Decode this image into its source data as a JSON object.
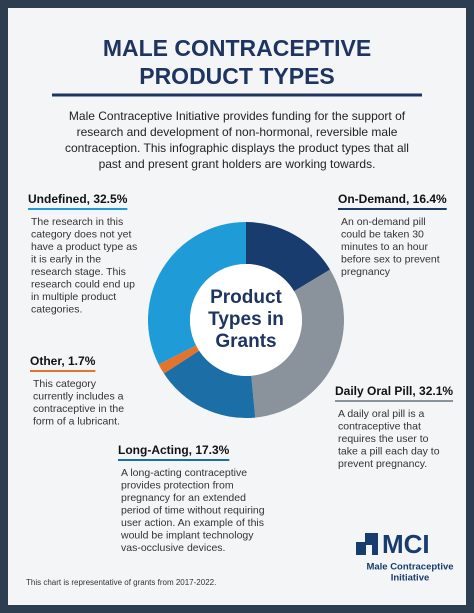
{
  "title": [
    "MALE CONTRACEPTIVE",
    "PRODUCT TYPES"
  ],
  "intro": [
    "Male Contraceptive Initiative provides funding for the support of",
    "research and development of non-hormonal, reversible male",
    "contraception. This infographic displays the product types that all",
    "past and present grant holders are working towards."
  ],
  "chart_data": {
    "type": "pie",
    "donut": true,
    "center_label": [
      "Product",
      "Types in",
      "Grants"
    ],
    "values": [
      16.4,
      32.1,
      17.3,
      1.7,
      32.5
    ],
    "value_labels": [
      "On-Demand, 16.4%",
      "Daily Oral Pill, 32.1%",
      "Long-Acting, 17.3%",
      "Other, 1.7%",
      "Undefined, 32.5%"
    ],
    "colors": [
      "#183c6e",
      "#8a939c",
      "#1c6fa6",
      "#e4742c",
      "#1f9bd7"
    ],
    "descriptions": [
      [
        "An on-demand pill",
        "could be taken 30",
        "minutes to an hour",
        "before sex to prevent",
        "pregnancy"
      ],
      [
        "A daily oral pill is a",
        "contraceptive that",
        "requires the user to",
        "take a pill each day to",
        "prevent pregnancy."
      ],
      [
        "A long-acting contraceptive",
        "provides protection from",
        "pregnancy for an extended",
        "period of time without requiring",
        "user action. An example of this",
        "would be implant technology",
        "vas-occlusive devices."
      ],
      [
        "This category",
        "currently includes a",
        "contraceptive in the",
        "form of a lubricant."
      ],
      [
        "The research in this",
        "category does not yet",
        "have a product type as",
        "it is early in the",
        "research stage. This",
        "research could end up",
        "in multiple product",
        "categories."
      ]
    ]
  },
  "footnote": "This chart is representative of grants from 2017-2022.",
  "logo": {
    "mark": "MCI",
    "name": [
      "Male Contraceptive",
      "Initiative"
    ]
  }
}
